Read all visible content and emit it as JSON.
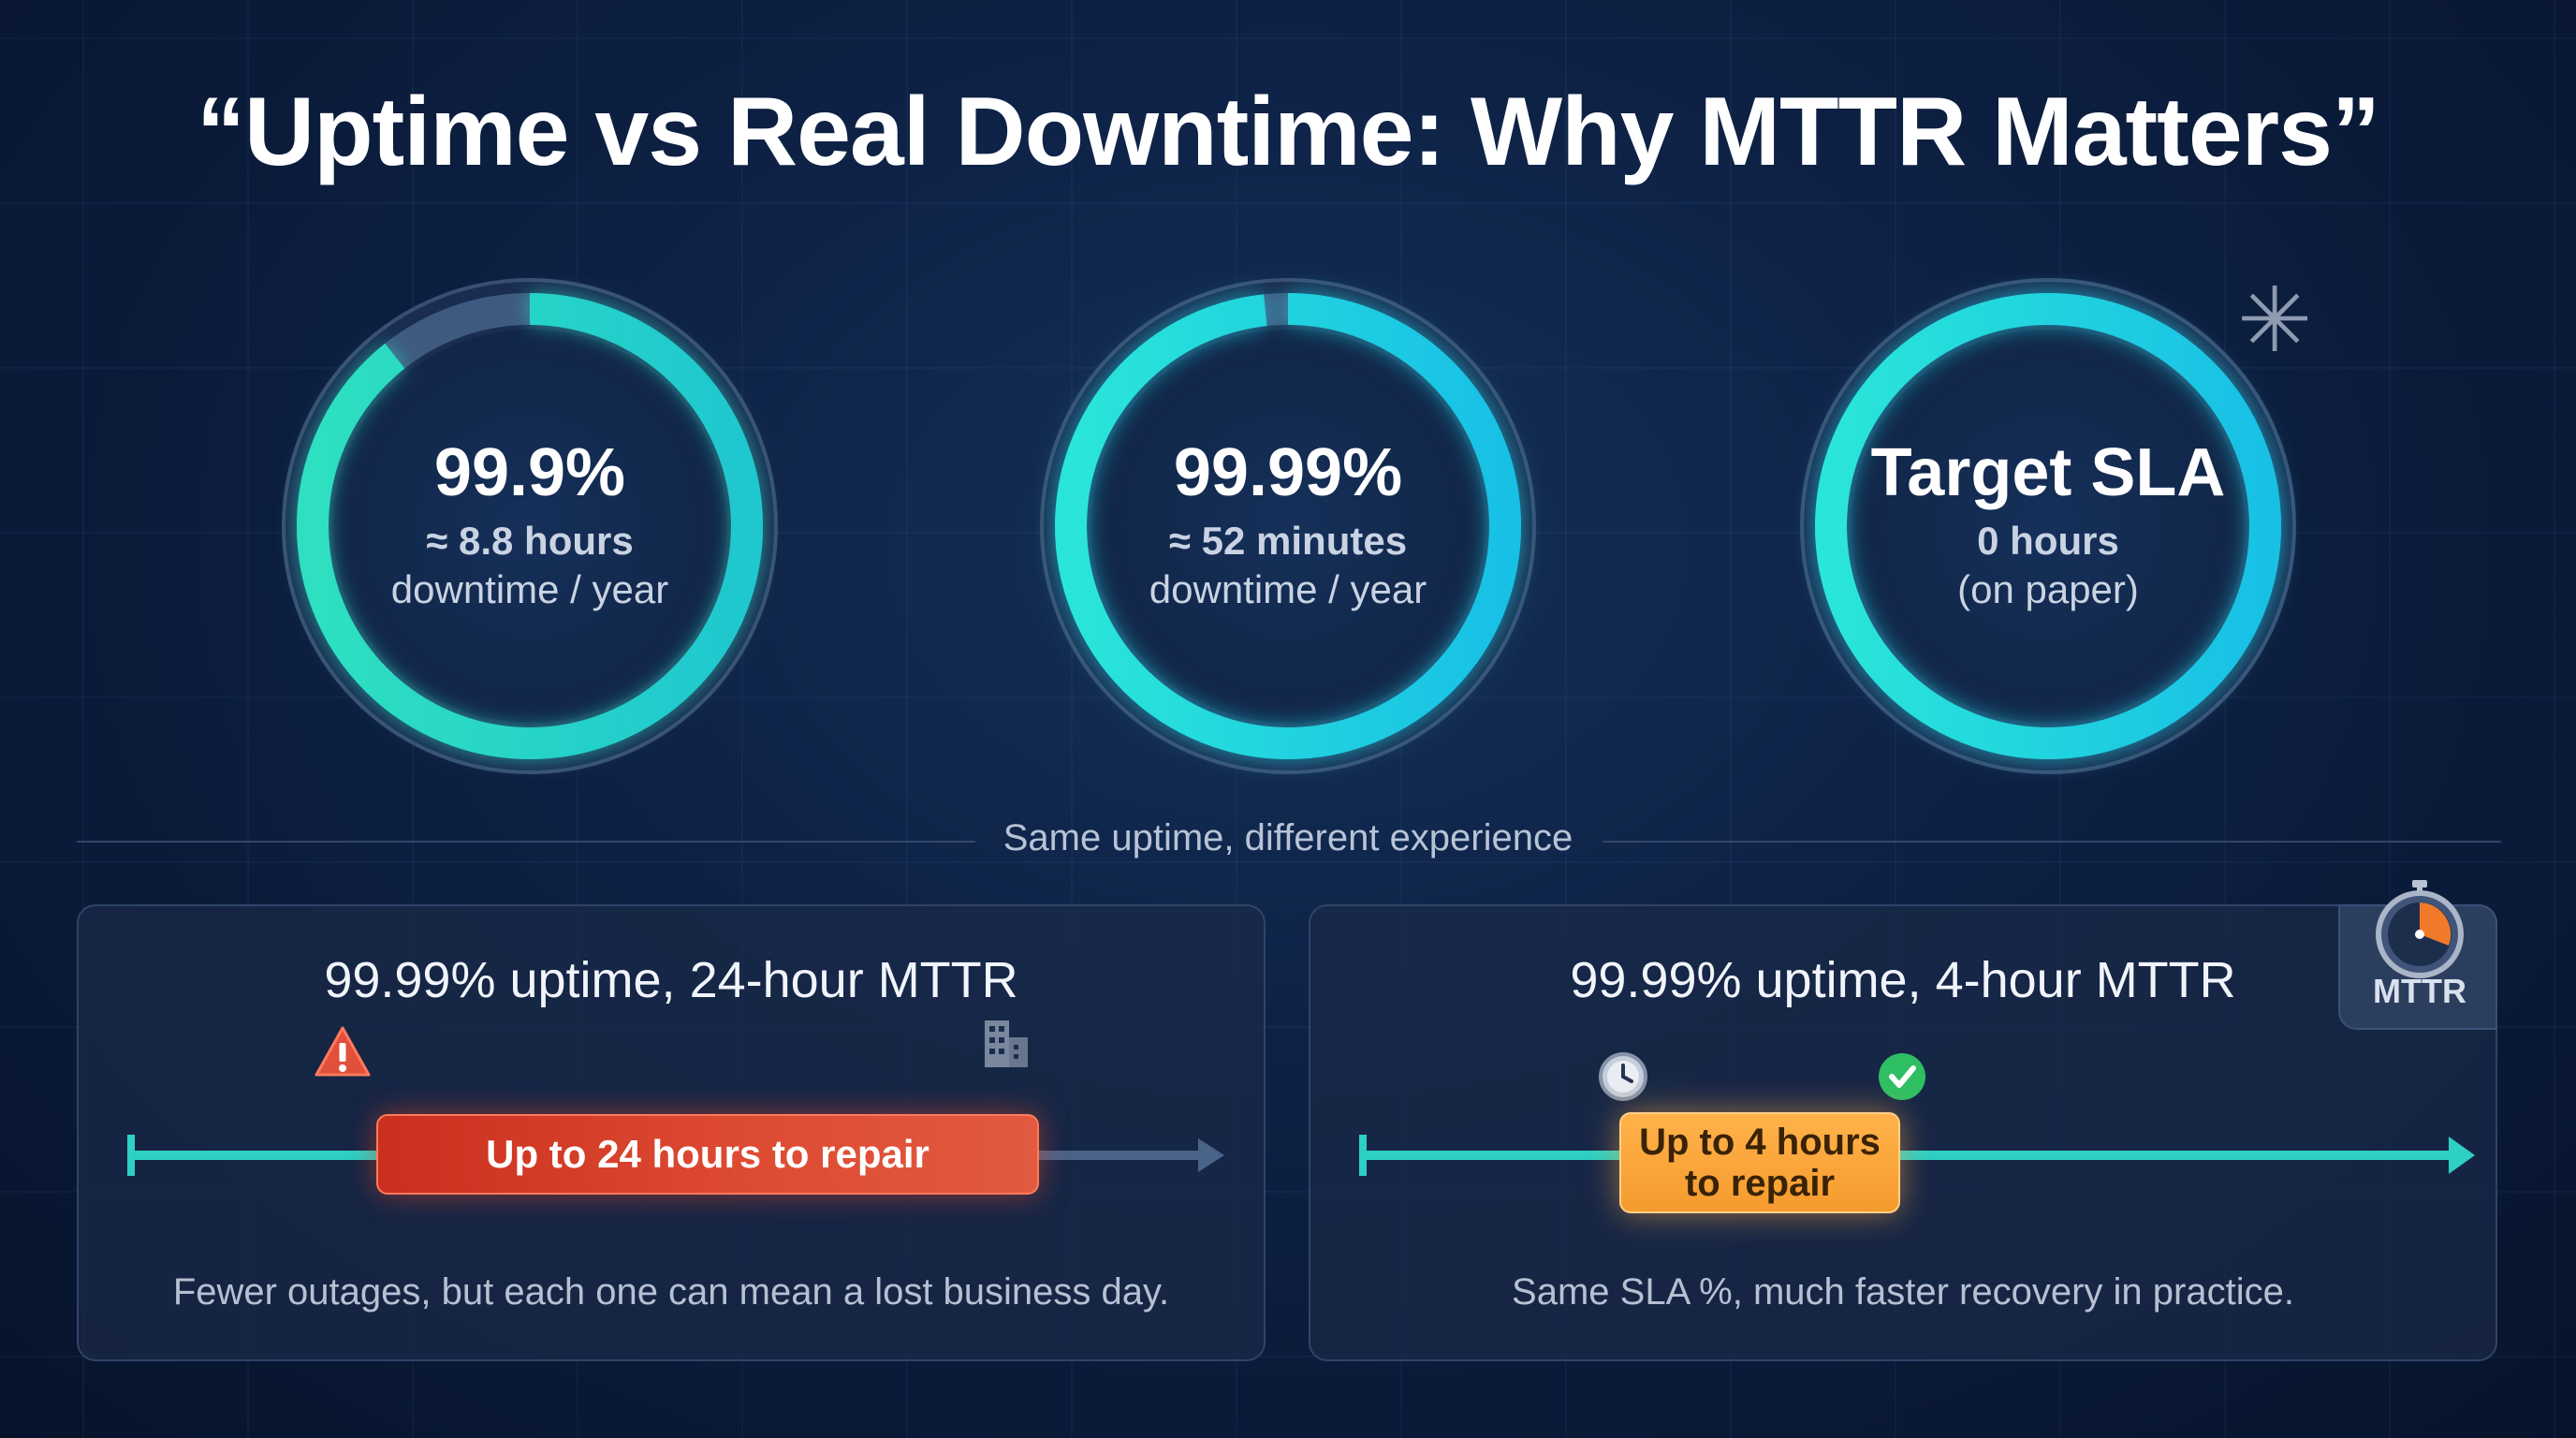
{
  "title": "“Uptime vs Real Downtime: Why MTTR Matters”",
  "gauges": [
    {
      "value": "99.9%",
      "line1": "≈ 8.8 hours",
      "line2": "downtime / year",
      "uptime_fraction": 0.9
    },
    {
      "value": "99.99%",
      "line1": "≈ 52 minutes",
      "line2": "downtime / year",
      "uptime_fraction": 0.99
    },
    {
      "value": "Target SLA",
      "line1": "0 hours",
      "line2": "(on paper)",
      "uptime_fraction": 1.0,
      "marker_icon": "asterisk-icon",
      "marker_glyph": "✳"
    }
  ],
  "divider_label": "Same uptime, different experience",
  "panels": [
    {
      "title": "99.99% uptime, 24-hour MTTR",
      "repair_label": "Up to 24 hours to repair",
      "caption": "Fewer outages, but each one can mean a lost business day.",
      "icons": [
        "warning-icon",
        "office-building-icon"
      ],
      "accent": "#d9402a"
    },
    {
      "title": "99.99% uptime, 4-hour MTTR",
      "repair_label_line1": "Up to 4 hours",
      "repair_label_line2": "to repair",
      "caption": "Same SLA %, much faster recovery in practice.",
      "icons": [
        "clock-icon",
        "check-circle-icon"
      ],
      "badge": {
        "icon": "stopwatch-icon",
        "label": "MTTR"
      },
      "accent": "#f5a23a"
    }
  ],
  "colors": {
    "teal": "#22d3c5",
    "cyan": "#1ec8e8",
    "track": "#3b5578",
    "background": "#0c1d3e"
  }
}
